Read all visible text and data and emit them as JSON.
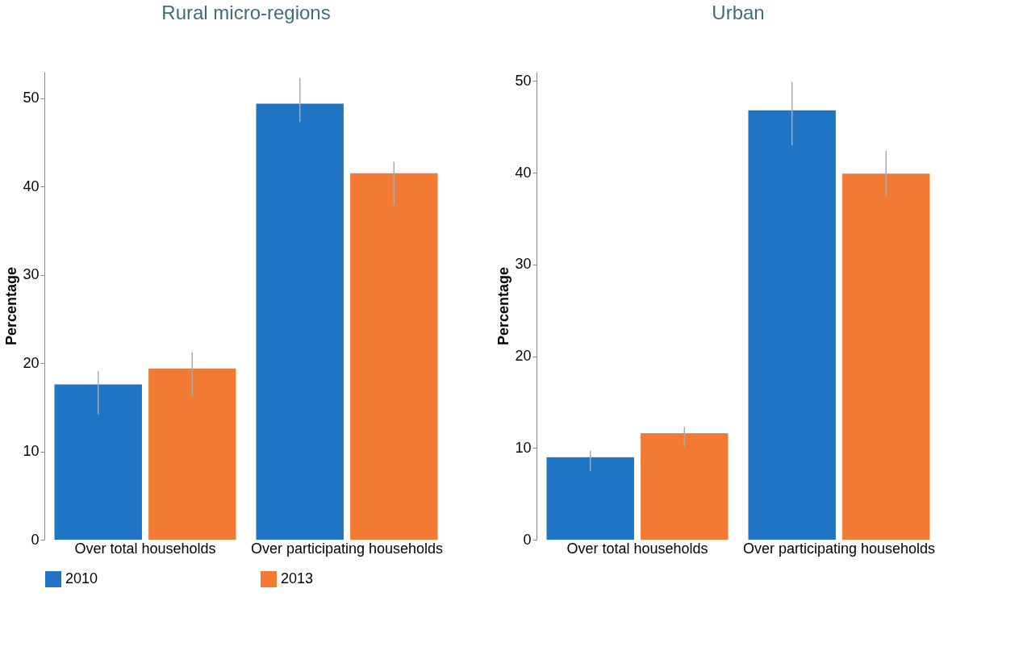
{
  "chart_data": [
    {
      "type": "bar",
      "title": "Rural micro-regions",
      "ylabel": "Percentage",
      "categories": [
        "Over total households",
        "Over participating households"
      ],
      "series": [
        {
          "name": "2010",
          "color": "#1f74c4",
          "values": [
            17.6,
            49.4
          ],
          "errors": [
            [
              14.2,
              19.1
            ],
            [
              47.3,
              52.3
            ]
          ]
        },
        {
          "name": "2013",
          "color": "#f37a32",
          "values": [
            19.4,
            41.5
          ],
          "errors": [
            [
              16.2,
              21.2
            ],
            [
              37.9,
              42.8
            ]
          ]
        }
      ],
      "ylim": [
        0,
        53
      ],
      "yticks": [
        0,
        10,
        20,
        30,
        40,
        50
      ],
      "grid": false,
      "legend": "bottom"
    },
    {
      "type": "bar",
      "title": "Urban",
      "ylabel": "Percentage",
      "categories": [
        "Over total households",
        "Over participating households"
      ],
      "series": [
        {
          "name": "2010",
          "color": "#1f74c4",
          "values": [
            9.0,
            46.8
          ],
          "errors": [
            [
              7.5,
              9.7
            ],
            [
              43.0,
              49.9
            ]
          ]
        },
        {
          "name": "2013",
          "color": "#f37a32",
          "values": [
            11.6,
            39.9
          ],
          "errors": [
            [
              10.1,
              12.3
            ],
            [
              37.5,
              42.4
            ]
          ]
        }
      ],
      "ylim": [
        0,
        51
      ],
      "yticks": [
        0,
        10,
        20,
        30,
        40,
        50
      ],
      "grid": false,
      "legend": "bottom"
    }
  ]
}
